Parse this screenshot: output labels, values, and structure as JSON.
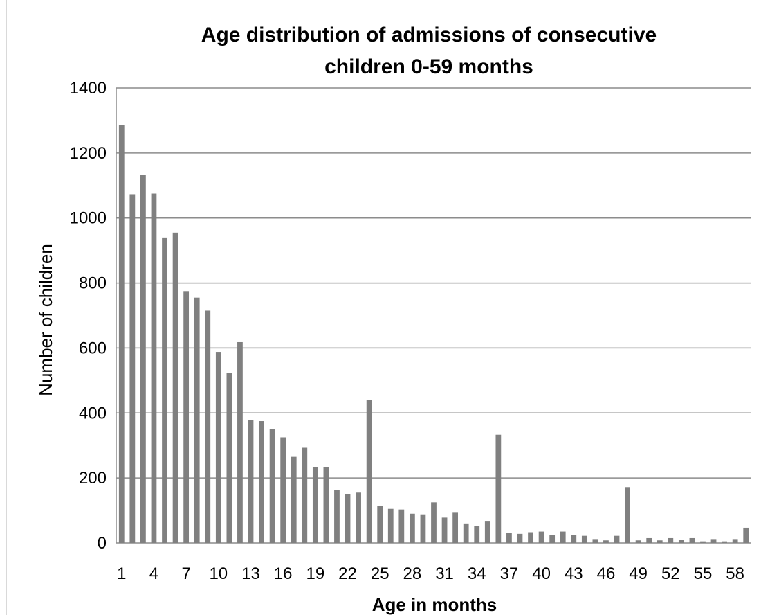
{
  "chart_data": {
    "type": "bar",
    "title_line1": "Age distribution of admissions of consecutive",
    "title_line2": "children 0-59 months",
    "xlabel": "Age in months",
    "ylabel": "Number of children",
    "ylim": [
      0,
      1400
    ],
    "yticks": [
      0,
      200,
      400,
      600,
      800,
      1000,
      1200,
      1400
    ],
    "categories": [
      1,
      2,
      3,
      4,
      5,
      6,
      7,
      8,
      9,
      10,
      11,
      12,
      13,
      14,
      15,
      16,
      17,
      18,
      19,
      20,
      21,
      22,
      23,
      24,
      25,
      26,
      27,
      28,
      29,
      30,
      31,
      32,
      33,
      34,
      35,
      36,
      37,
      38,
      39,
      40,
      41,
      42,
      43,
      44,
      45,
      46,
      47,
      48,
      49,
      50,
      51,
      52,
      53,
      54,
      55,
      56,
      57,
      58,
      59
    ],
    "xtick_labels": [
      "1",
      "4",
      "7",
      "10",
      "13",
      "16",
      "19",
      "22",
      "25",
      "28",
      "31",
      "34",
      "37",
      "40",
      "43",
      "46",
      "49",
      "52",
      "55",
      "58"
    ],
    "values": [
      1285,
      1073,
      1133,
      1075,
      940,
      955,
      775,
      755,
      715,
      588,
      523,
      618,
      378,
      375,
      350,
      325,
      265,
      293,
      233,
      233,
      163,
      150,
      155,
      440,
      115,
      105,
      103,
      90,
      88,
      125,
      78,
      93,
      60,
      53,
      68,
      333,
      30,
      28,
      33,
      35,
      25,
      35,
      25,
      22,
      12,
      8,
      22,
      172,
      8,
      15,
      8,
      15,
      10,
      15,
      5,
      12,
      5,
      12,
      47
    ],
    "bar_color": "#808080",
    "grid": true
  }
}
